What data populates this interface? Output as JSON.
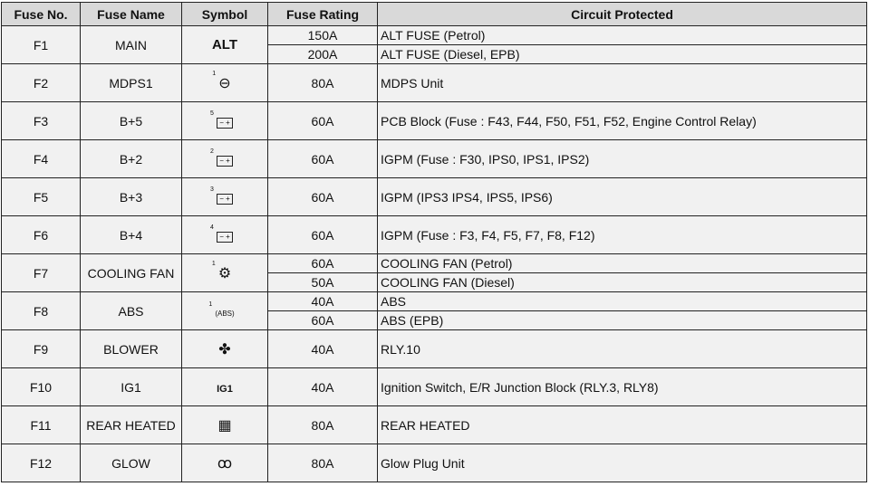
{
  "headers": [
    "Fuse No.",
    "Fuse Name",
    "Symbol",
    "Fuse Rating",
    "Circuit Protected"
  ],
  "rows": [
    {
      "no": "F1",
      "name": "MAIN",
      "symbol": "ALT",
      "sup": "",
      "ratings": [
        {
          "r": "150A",
          "c": "ALT FUSE (Petrol)"
        },
        {
          "r": "200A",
          "c": "ALT FUSE (Diesel, EPB)"
        }
      ]
    },
    {
      "no": "F2",
      "name": "MDPS1",
      "symbol": "steering-wheel-icon",
      "sup": "1",
      "ratings": [
        {
          "r": "80A",
          "c": "MDPS Unit"
        }
      ]
    },
    {
      "no": "F3",
      "name": "B+5",
      "symbol": "battery-icon",
      "sup": "5",
      "ratings": [
        {
          "r": "60A",
          "c": "PCB Block (Fuse : F43, F44, F50, F51, F52, Engine Control Relay)"
        }
      ]
    },
    {
      "no": "F4",
      "name": "B+2",
      "symbol": "battery-icon",
      "sup": "2",
      "ratings": [
        {
          "r": "60A",
          "c": "IGPM (Fuse : F30, IPS0, IPS1, IPS2)"
        }
      ]
    },
    {
      "no": "F5",
      "name": "B+3",
      "symbol": "battery-icon",
      "sup": "3",
      "ratings": [
        {
          "r": "60A",
          "c": "IGPM (IPS3 IPS4, IPS5, IPS6)"
        }
      ]
    },
    {
      "no": "F6",
      "name": "B+4",
      "symbol": "battery-icon",
      "sup": "4",
      "ratings": [
        {
          "r": "60A",
          "c": "IGPM (Fuse : F3, F4, F5, F7, F8, F12)"
        }
      ]
    },
    {
      "no": "F7",
      "name": "COOLING FAN",
      "symbol": "cooling-fan-icon",
      "sup": "1",
      "ratings": [
        {
          "r": "60A",
          "c": "COOLING FAN (Petrol)"
        },
        {
          "r": "50A",
          "c": "COOLING FAN (Diesel)"
        }
      ]
    },
    {
      "no": "F8",
      "name": "ABS",
      "symbol": "abs-icon",
      "sup": "1",
      "ratings": [
        {
          "r": "40A",
          "c": "ABS"
        },
        {
          "r": "60A",
          "c": "ABS (EPB)"
        }
      ]
    },
    {
      "no": "F9",
      "name": "BLOWER",
      "symbol": "blower-fan-icon",
      "sup": "",
      "ratings": [
        {
          "r": "40A",
          "c": "RLY.10"
        }
      ]
    },
    {
      "no": "F10",
      "name": "IG1",
      "symbol": "IG1",
      "sup": "",
      "ratings": [
        {
          "r": "40A",
          "c": "Ignition Switch, E/R Junction Block (RLY.3, RLY8)"
        }
      ]
    },
    {
      "no": "F11",
      "name": "REAR HEATED",
      "symbol": "rear-defroster-icon",
      "sup": "",
      "ratings": [
        {
          "r": "80A",
          "c": "REAR HEATED"
        }
      ]
    },
    {
      "no": "F12",
      "name": "GLOW",
      "symbol": "glow-plug-icon",
      "sup": "",
      "ratings": [
        {
          "r": "80A",
          "c": "Glow Plug Unit"
        }
      ]
    }
  ]
}
